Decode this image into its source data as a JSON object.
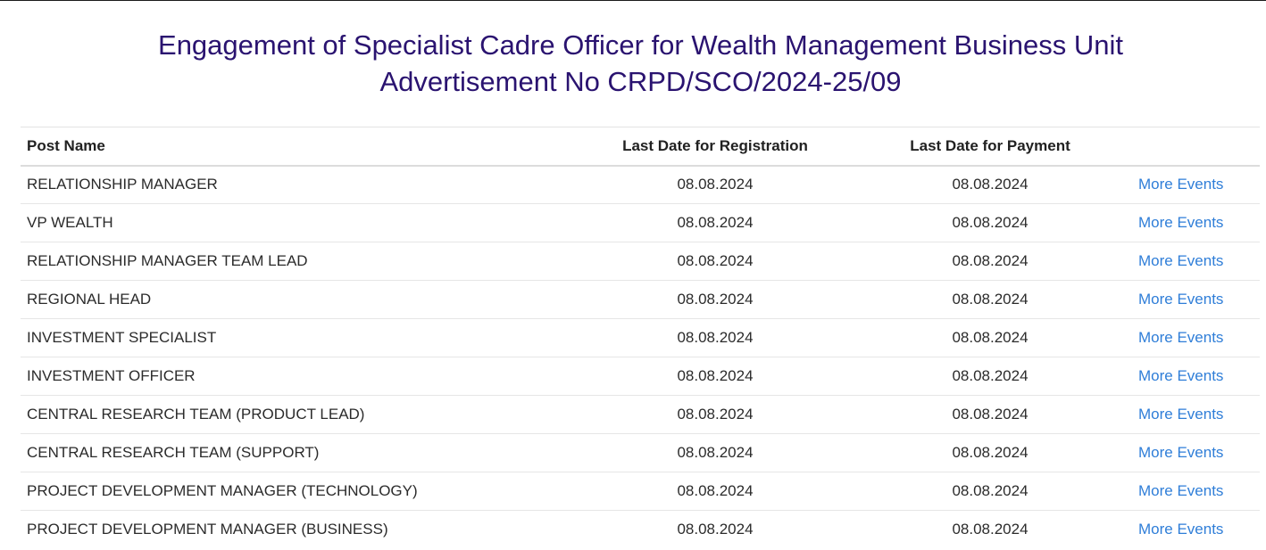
{
  "heading": {
    "line1": "Engagement of Specialist Cadre Officer for Wealth Management Business Unit",
    "line2": "Advertisement No CRPD/SCO/2024-25/09"
  },
  "table": {
    "headers": {
      "post_name": "Post Name",
      "last_date_registration": "Last Date for Registration",
      "last_date_payment": "Last Date for Payment",
      "actions": ""
    },
    "rows": [
      {
        "post": "RELATIONSHIP MANAGER",
        "registration": "08.08.2024",
        "payment": "08.08.2024",
        "link": "More Events"
      },
      {
        "post": "VP WEALTH",
        "registration": "08.08.2024",
        "payment": "08.08.2024",
        "link": "More Events"
      },
      {
        "post": "RELATIONSHIP MANAGER TEAM LEAD",
        "registration": "08.08.2024",
        "payment": "08.08.2024",
        "link": "More Events"
      },
      {
        "post": "REGIONAL HEAD",
        "registration": "08.08.2024",
        "payment": "08.08.2024",
        "link": "More Events"
      },
      {
        "post": "INVESTMENT SPECIALIST",
        "registration": "08.08.2024",
        "payment": "08.08.2024",
        "link": "More Events"
      },
      {
        "post": "INVESTMENT OFFICER",
        "registration": "08.08.2024",
        "payment": "08.08.2024",
        "link": "More Events"
      },
      {
        "post": "CENTRAL RESEARCH TEAM (PRODUCT LEAD)",
        "registration": "08.08.2024",
        "payment": "08.08.2024",
        "link": "More Events"
      },
      {
        "post": "CENTRAL RESEARCH TEAM (SUPPORT)",
        "registration": "08.08.2024",
        "payment": "08.08.2024",
        "link": "More Events"
      },
      {
        "post": "PROJECT DEVELOPMENT MANAGER (TECHNOLOGY)",
        "registration": "08.08.2024",
        "payment": "08.08.2024",
        "link": "More Events"
      },
      {
        "post": "PROJECT DEVELOPMENT MANAGER (BUSINESS)",
        "registration": "08.08.2024",
        "payment": "08.08.2024",
        "link": "More Events"
      }
    ]
  },
  "colors": {
    "heading": "#2a1370",
    "link": "#2f7ed8",
    "text": "#2b2b2b"
  }
}
